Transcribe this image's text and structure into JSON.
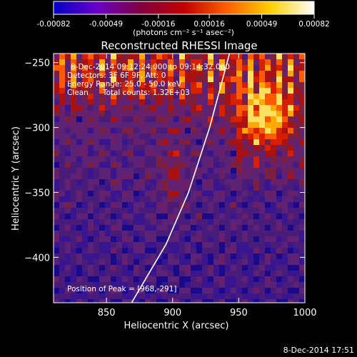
{
  "chart_data": {
    "type": "heatmap",
    "colorbar": {
      "ticks": [
        "-0.00082",
        "-0.00049",
        "-0.00016",
        "0.00016",
        "0.00049",
        "0.00082"
      ],
      "range": [
        -0.00082,
        0.00082
      ],
      "unit_label": "(photons cm⁻² s⁻¹ asec⁻²)",
      "colormap": [
        "#0000c8",
        "#6a00c8",
        "#800040",
        "#c00000",
        "#ff6000",
        "#ffd000",
        "#ffffff"
      ]
    },
    "title": "Reconstructed RHESSI Image",
    "xlabel": "Heliocentric X (arcsec)",
    "ylabel": "Heliocentric Y (arcsec)",
    "xlim": [
      810,
      1000
    ],
    "ylim": [
      -435,
      -243
    ],
    "xticks": [
      850,
      900,
      950,
      1000
    ],
    "yticks": [
      -250,
      -300,
      -350,
      -400
    ],
    "grid": false,
    "annotations": [
      "8-Dec-2014 09:12:24.000 to 09:14:32.000",
      "Detectors: 3F 6F 9F, Att: 0",
      "Energy Range: 25.0 - 50.0 keV",
      "Clean      Total counts: 1.32E+03",
      "Position of Peak = [968,-291]"
    ],
    "peak": {
      "x": 968,
      "y": -291
    },
    "limb_curve": [
      [
        869,
        -435
      ],
      [
        895,
        -390
      ],
      [
        912,
        -350
      ],
      [
        928,
        -300
      ],
      [
        943,
        -243
      ]
    ]
  },
  "footer": {
    "timestamp": "8-Dec-2014 17:51"
  }
}
